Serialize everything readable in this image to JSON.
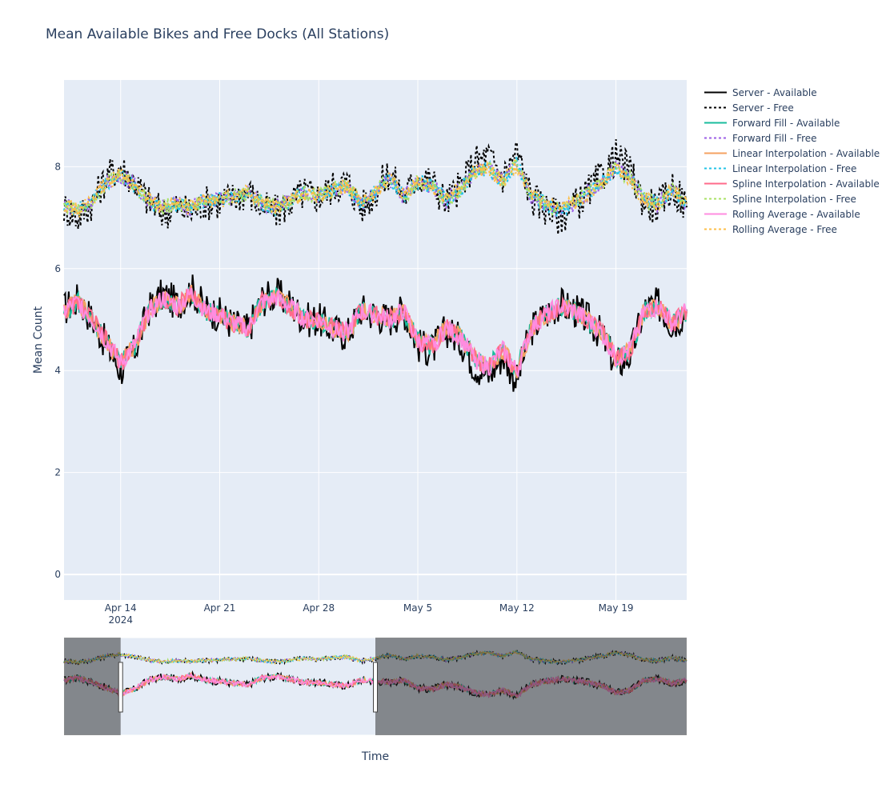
{
  "chart_data": {
    "type": "line",
    "title": "Mean Available Bikes and Free Docks (All Stations)",
    "xlabel": "Time",
    "ylabel": "Mean Count",
    "ylim": [
      -0.5,
      9.7
    ],
    "x_range": [
      "2024-04-10",
      "2024-05-24"
    ],
    "y_ticks": [
      0,
      2,
      4,
      6,
      8
    ],
    "x_ticks": [
      {
        "date": "2024-04-14",
        "label": "Apr 14",
        "sublabel": "2024"
      },
      {
        "date": "2024-04-21",
        "label": "Apr 21",
        "sublabel": ""
      },
      {
        "date": "2024-04-28",
        "label": "Apr 28",
        "sublabel": ""
      },
      {
        "date": "2024-05-05",
        "label": "May 5",
        "sublabel": ""
      },
      {
        "date": "2024-05-12",
        "label": "May 12",
        "sublabel": ""
      },
      {
        "date": "2024-05-19",
        "label": "May 19",
        "sublabel": ""
      }
    ],
    "grid": true,
    "legend_position": "right",
    "rangeslider": {
      "visible": true,
      "selected_range": [
        "2024-04-14",
        "2024-05-02"
      ],
      "full_range": [
        "2024-04-10",
        "2024-05-24"
      ]
    },
    "series": [
      {
        "name": "Server - Available",
        "color": "#000000",
        "dash": "solid",
        "group": "available",
        "missing": [],
        "points": [
          [
            "2024-04-10",
            5.2
          ],
          [
            "2024-04-11",
            5.4
          ],
          [
            "2024-04-12",
            5.0
          ],
          [
            "2024-04-13",
            4.5
          ],
          [
            "2024-04-14",
            4.0
          ],
          [
            "2024-04-15",
            4.4
          ],
          [
            "2024-04-16",
            5.2
          ],
          [
            "2024-04-17",
            5.5
          ],
          [
            "2024-04-18",
            5.3
          ],
          [
            "2024-04-19",
            5.6
          ],
          [
            "2024-04-20",
            5.2
          ],
          [
            "2024-04-21",
            5.1
          ],
          [
            "2024-04-22",
            4.9
          ],
          [
            "2024-04-23",
            4.8
          ],
          [
            "2024-04-24",
            5.4
          ],
          [
            "2024-04-25",
            5.5
          ],
          [
            "2024-04-26",
            5.3
          ],
          [
            "2024-04-27",
            5.0
          ],
          [
            "2024-04-28",
            5.0
          ],
          [
            "2024-04-29",
            4.8
          ],
          [
            "2024-04-30",
            4.7
          ],
          [
            "2024-05-01",
            5.2
          ],
          [
            "2024-05-02",
            5.1
          ],
          [
            "2024-05-03",
            5.0
          ],
          [
            "2024-05-04",
            5.2
          ],
          [
            "2024-05-05",
            4.5
          ],
          [
            "2024-05-06",
            4.4
          ],
          [
            "2024-05-07",
            4.8
          ],
          [
            "2024-05-08",
            4.6
          ],
          [
            "2024-05-09",
            4.1
          ],
          [
            "2024-05-10",
            3.9
          ],
          [
            "2024-05-11",
            4.3
          ],
          [
            "2024-05-12",
            3.8
          ],
          [
            "2024-05-13",
            4.8
          ],
          [
            "2024-05-14",
            5.1
          ],
          [
            "2024-05-15",
            5.3
          ],
          [
            "2024-05-16",
            5.2
          ],
          [
            "2024-05-17",
            5.0
          ],
          [
            "2024-05-18",
            4.7
          ],
          [
            "2024-05-19",
            4.1
          ],
          [
            "2024-05-20",
            4.3
          ],
          [
            "2024-05-21",
            5.2
          ],
          [
            "2024-05-22",
            5.3
          ],
          [
            "2024-05-23",
            4.9
          ],
          [
            "2024-05-24",
            5.2
          ]
        ]
      },
      {
        "name": "Server - Free",
        "color": "#000000",
        "dash": "dot",
        "group": "free",
        "missing": [],
        "points": [
          [
            "2024-04-10",
            7.2
          ],
          [
            "2024-04-11",
            7.0
          ],
          [
            "2024-04-12",
            7.3
          ],
          [
            "2024-04-13",
            7.8
          ],
          [
            "2024-04-14",
            8.0
          ],
          [
            "2024-04-15",
            7.7
          ],
          [
            "2024-04-16",
            7.3
          ],
          [
            "2024-04-17",
            7.1
          ],
          [
            "2024-04-18",
            7.2
          ],
          [
            "2024-04-19",
            7.1
          ],
          [
            "2024-04-20",
            7.3
          ],
          [
            "2024-04-21",
            7.3
          ],
          [
            "2024-04-22",
            7.4
          ],
          [
            "2024-04-23",
            7.5
          ],
          [
            "2024-04-24",
            7.2
          ],
          [
            "2024-04-25",
            7.1
          ],
          [
            "2024-04-26",
            7.3
          ],
          [
            "2024-04-27",
            7.5
          ],
          [
            "2024-04-28",
            7.4
          ],
          [
            "2024-04-29",
            7.6
          ],
          [
            "2024-04-30",
            7.7
          ],
          [
            "2024-05-01",
            7.2
          ],
          [
            "2024-05-02",
            7.5
          ],
          [
            "2024-05-03",
            7.9
          ],
          [
            "2024-05-04",
            7.4
          ],
          [
            "2024-05-05",
            7.8
          ],
          [
            "2024-05-06",
            7.7
          ],
          [
            "2024-05-07",
            7.3
          ],
          [
            "2024-05-08",
            7.6
          ],
          [
            "2024-05-09",
            8.1
          ],
          [
            "2024-05-10",
            8.2
          ],
          [
            "2024-05-11",
            7.8
          ],
          [
            "2024-05-12",
            8.3
          ],
          [
            "2024-05-13",
            7.4
          ],
          [
            "2024-05-14",
            7.2
          ],
          [
            "2024-05-15",
            7.0
          ],
          [
            "2024-05-16",
            7.2
          ],
          [
            "2024-05-17",
            7.5
          ],
          [
            "2024-05-18",
            7.8
          ],
          [
            "2024-05-19",
            8.2
          ],
          [
            "2024-05-20",
            7.9
          ],
          [
            "2024-05-21",
            7.3
          ],
          [
            "2024-05-22",
            7.2
          ],
          [
            "2024-05-23",
            7.6
          ],
          [
            "2024-05-24",
            7.2
          ]
        ]
      },
      {
        "name": "Forward Fill - Available",
        "color": "#1abc9c",
        "dash": "solid",
        "group": "available",
        "missing": []
      },
      {
        "name": "Forward Fill - Free",
        "color": "#9b5de5",
        "dash": "dot",
        "group": "free",
        "missing": []
      },
      {
        "name": "Linear Interpolation - Available",
        "color": "#f4a261",
        "dash": "solid",
        "group": "available",
        "missing": []
      },
      {
        "name": "Linear Interpolation - Free",
        "color": "#22c3e6",
        "dash": "dot",
        "group": "free",
        "missing": []
      },
      {
        "name": "Spline Interpolation - Available",
        "color": "#ff6b8b",
        "dash": "solid",
        "group": "available",
        "missing": []
      },
      {
        "name": "Spline Interpolation - Free",
        "color": "#a8e063",
        "dash": "dot",
        "group": "free",
        "missing": []
      },
      {
        "name": "Rolling Average - Available",
        "color": "#ff8ce0",
        "dash": "solid",
        "group": "available",
        "missing": []
      },
      {
        "name": "Rolling Average - Free",
        "color": "#fcbf49",
        "dash": "dot",
        "group": "free",
        "missing": []
      }
    ]
  }
}
